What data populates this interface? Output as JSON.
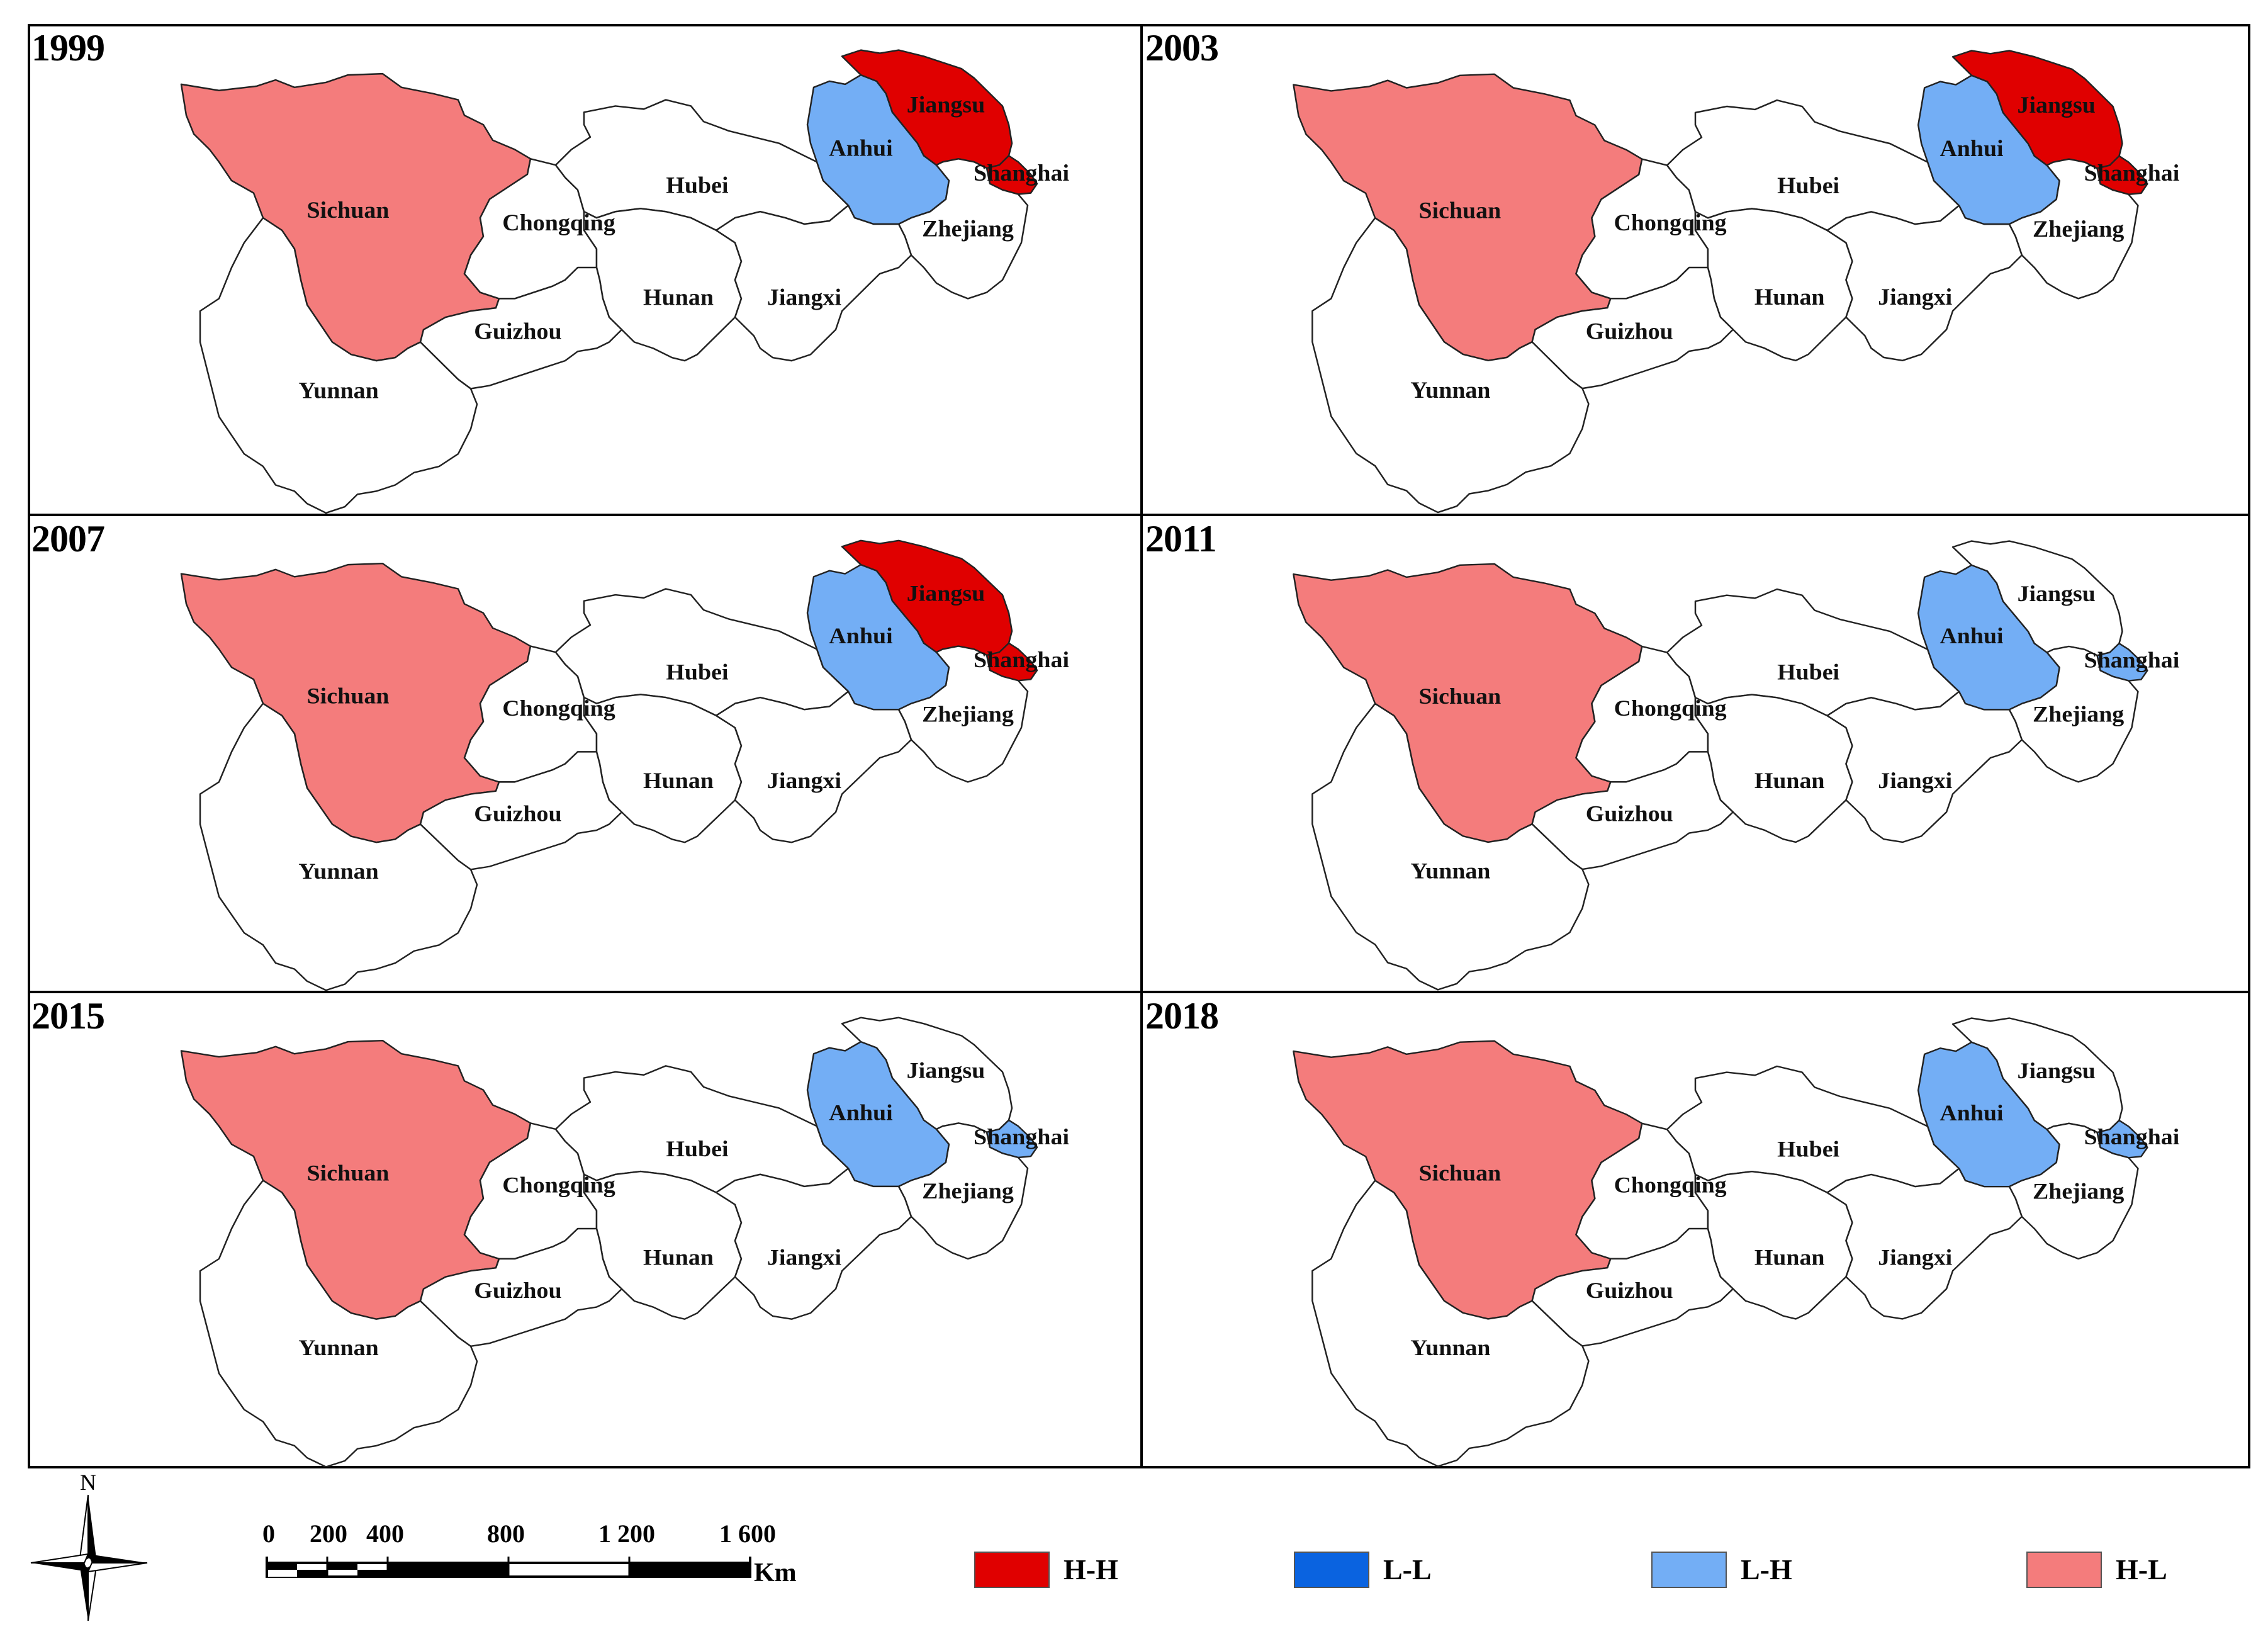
{
  "figure": {
    "panels": [
      {
        "year": "1999",
        "colors": {
          "Sichuan": "H-L",
          "Anhui": "L-H",
          "Jiangsu": "H-H",
          "Shanghai": "H-H"
        }
      },
      {
        "year": "2003",
        "colors": {
          "Sichuan": "H-L",
          "Anhui": "L-H",
          "Jiangsu": "H-H",
          "Shanghai": "H-H"
        }
      },
      {
        "year": "2007",
        "colors": {
          "Sichuan": "H-L",
          "Anhui": "L-H",
          "Jiangsu": "H-H",
          "Shanghai": "H-H"
        }
      },
      {
        "year": "2011",
        "colors": {
          "Sichuan": "H-L",
          "Anhui": "L-H",
          "Shanghai": "L-H"
        }
      },
      {
        "year": "2015",
        "colors": {
          "Sichuan": "H-L",
          "Anhui": "L-H",
          "Shanghai": "L-H"
        }
      },
      {
        "year": "2018",
        "colors": {
          "Sichuan": "H-L",
          "Anhui": "L-H",
          "Shanghai": "L-H"
        }
      }
    ],
    "province_labels": [
      "Sichuan",
      "Chongqing",
      "Hubei",
      "Anhui",
      "Jiangsu",
      "Shanghai",
      "Zhejiang",
      "Hunan",
      "Jiangxi",
      "Guizhou",
      "Yunnan"
    ]
  },
  "legend": {
    "items": [
      {
        "key": "H-H",
        "label": "H-H",
        "color": "#e00000"
      },
      {
        "key": "L-L",
        "label": "L-L",
        "color": "#0a63e0"
      },
      {
        "key": "L-H",
        "label": "L-H",
        "color": "#73aef5"
      },
      {
        "key": "H-L",
        "label": "H-L",
        "color": "#f47c7c"
      }
    ]
  },
  "scale_bar": {
    "ticks": [
      "0",
      "200",
      "400",
      "800",
      "1 200",
      "1 600"
    ],
    "unit": "Km"
  },
  "north_arrow": {
    "label": "N",
    "icon": "north-arrow-icon"
  }
}
